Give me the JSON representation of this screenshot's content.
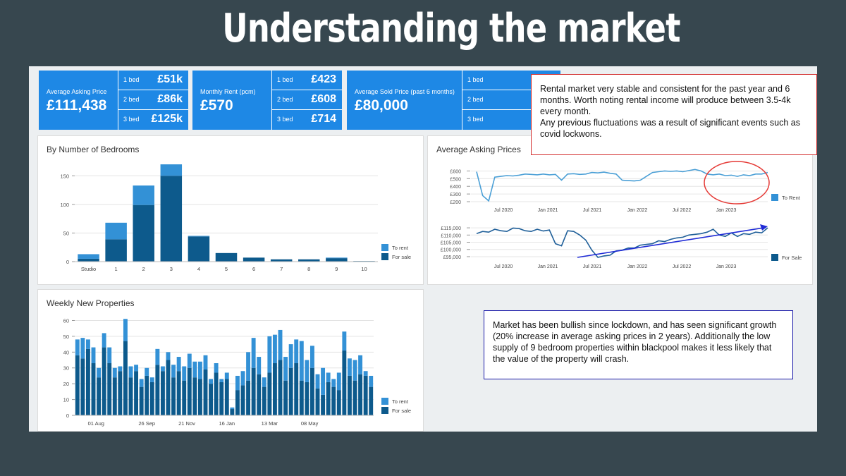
{
  "slide_title": "Understanding the market",
  "kpis": [
    {
      "caption": "Average Asking Price",
      "value": "£111,438",
      "rows": [
        {
          "label": "1 bed",
          "value": "£51k"
        },
        {
          "label": "2 bed",
          "value": "£86k"
        },
        {
          "label": "3 bed",
          "value": "£125k"
        }
      ]
    },
    {
      "caption": "Monthly Rent (pcm)",
      "value": "£570",
      "rows": [
        {
          "label": "1 bed",
          "value": "£423"
        },
        {
          "label": "2 bed",
          "value": "£608"
        },
        {
          "label": "3 bed",
          "value": "£714"
        }
      ]
    },
    {
      "caption": "Average Sold Price (past 6 months)",
      "value": "£80,000",
      "rows": [
        {
          "label": "1 bed",
          "value": "-"
        },
        {
          "label": "2 bed",
          "value": "-"
        },
        {
          "label": "3 bed",
          "value": "-"
        }
      ]
    }
  ],
  "notes": {
    "rental": "Rental market very stable and consistent for the past year and 6 months. Worth noting rental income will produce between 3.5-4k every month.\nAny previous fluctuations was a result of significant events such as covid lockwons.",
    "bullish": "Market has been bullish since lockdown, and has seen significant growth (20% increase in average asking prices in 2 years). Additionally the low supply of 9 bedroom properties within blackpool makes it less likely that the value of the property will crash."
  },
  "colors": {
    "to_rent": "#3391d6",
    "for_sale": "#0d5a8c",
    "rent_line": "#4a9fd6",
    "sale_line": "#1f5f99",
    "trend_arrow": "#1f2bd6",
    "highlight": "#e53935"
  },
  "chart_data": [
    {
      "type": "bar",
      "title": "By Number of Bedrooms",
      "stacked": true,
      "categories": [
        "Studio",
        "1",
        "2",
        "3",
        "4",
        "5",
        "6",
        "7",
        "8",
        "9",
        "10"
      ],
      "series": [
        {
          "name": "For sale",
          "values": [
            5,
            39,
            99,
            150,
            44,
            15,
            7,
            4,
            4,
            6,
            1
          ]
        },
        {
          "name": "To rent",
          "values": [
            8,
            29,
            34,
            20,
            1,
            0,
            0,
            0,
            0,
            1,
            0
          ]
        }
      ],
      "ylim": [
        0,
        175
      ],
      "yticks": [
        0,
        50,
        100,
        150
      ],
      "legend": "bottom-right",
      "grid": true
    },
    {
      "type": "line",
      "title": "Average Asking Prices",
      "x_ticks": [
        "Jul 2020",
        "Jan 2021",
        "Jul 2021",
        "Jan 2022",
        "Jul 2022",
        "Jan 2023"
      ],
      "panels": [
        {
          "name": "To Rent",
          "ylim": [
            200,
            650
          ],
          "yticks": [
            "£200",
            "£300",
            "£400",
            "£500",
            "£600"
          ],
          "values": [
            590,
            280,
            210,
            520,
            530,
            540,
            535,
            545,
            560,
            555,
            550,
            560,
            550,
            555,
            480,
            560,
            565,
            555,
            560,
            580,
            575,
            585,
            570,
            560,
            480,
            475,
            470,
            480,
            530,
            580,
            590,
            600,
            595,
            600,
            590,
            605,
            620,
            600,
            560,
            550,
            560,
            540,
            545,
            530,
            550,
            540,
            560,
            560,
            580
          ]
        },
        {
          "name": "For Sale",
          "ylim": [
            94000,
            117000
          ],
          "yticks": [
            "£95,000",
            "£100,000",
            "£105,000",
            "£110,000",
            "£115,000"
          ],
          "values": [
            111000,
            112500,
            112000,
            114000,
            113000,
            112500,
            114800,
            114500,
            113000,
            112500,
            114000,
            112800,
            113500,
            104000,
            102500,
            113000,
            112500,
            110000,
            106500,
            99500,
            94500,
            95500,
            96000,
            99000,
            99500,
            101000,
            101000,
            103000,
            103500,
            104000,
            106000,
            105500,
            107000,
            108000,
            108500,
            110000,
            110500,
            111000,
            112000,
            114000,
            110000,
            109000,
            111500,
            109000,
            111000,
            110500,
            112000,
            111500,
            115000
          ]
        }
      ],
      "annotation_arrow": {
        "from_value": 94500,
        "to_value": 116000
      }
    },
    {
      "type": "bar",
      "title": "Weekly New Properties",
      "stacked": true,
      "x_ticks": [
        "01 Aug",
        "26 Sep",
        "21 Nov",
        "16 Jan",
        "13 Mar",
        "08 May"
      ],
      "series": [
        {
          "name": "For sale",
          "values": [
            38,
            36,
            42,
            33,
            24,
            43,
            33,
            24,
            28,
            47,
            24,
            28,
            18,
            25,
            21,
            32,
            28,
            35,
            24,
            28,
            22,
            30,
            24,
            23,
            29,
            20,
            27,
            21,
            23,
            4,
            16,
            19,
            22,
            30,
            26,
            18,
            27,
            33,
            35,
            22,
            30,
            33,
            22,
            21,
            30,
            17,
            13,
            21,
            18,
            16,
            41,
            25,
            22,
            26,
            25,
            18
          ]
        },
        {
          "name": "To rent",
          "values": [
            10,
            13,
            6,
            10,
            6,
            9,
            10,
            6,
            3,
            14,
            7,
            4,
            5,
            5,
            3,
            10,
            3,
            5,
            8,
            9,
            9,
            9,
            10,
            11,
            9,
            3,
            6,
            2,
            4,
            1,
            9,
            9,
            18,
            19,
            11,
            6,
            23,
            18,
            19,
            15,
            15,
            15,
            25,
            14,
            14,
            9,
            17,
            6,
            5,
            11,
            12,
            11,
            13,
            12,
            3,
            7
          ]
        }
      ],
      "ylim": [
        0,
        62
      ],
      "yticks": [
        0,
        10,
        20,
        30,
        40,
        50,
        60
      ],
      "legend": "bottom-right",
      "grid": true
    }
  ]
}
